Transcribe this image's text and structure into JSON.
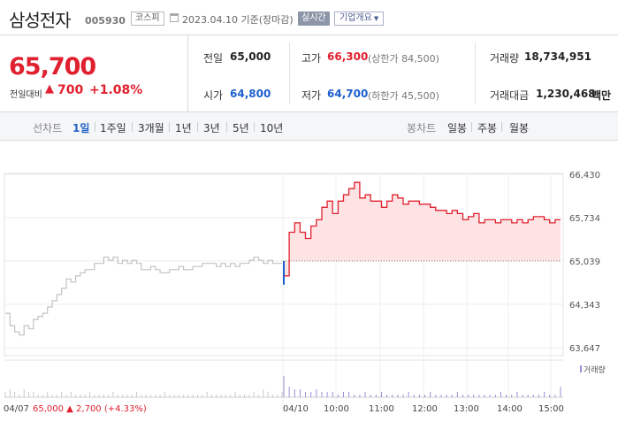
{
  "header": {
    "name": "삼성전자",
    "code": "005930",
    "market": "코스피",
    "as_of": "2023.04.10 기준(장마감)",
    "realtime_label": "실시간",
    "company_label": "기업개요"
  },
  "price": {
    "current": "65,700",
    "change_label": "전일대비",
    "change_arrow": "▲",
    "change": "700",
    "change_pct": "+1.08%"
  },
  "info": {
    "prev_close_label": "전일",
    "prev_close": "65,000",
    "high_label": "고가",
    "high": "66,300",
    "upper_limit": "(상한가 84,500)",
    "volume_label": "거래량",
    "volume": "18,734,951",
    "open_label": "시가",
    "open": "64,800",
    "low_label": "저가",
    "low": "64,700",
    "lower_limit": "(하한가 45,500)",
    "amount_label": "거래대금",
    "amount": "1,230,468",
    "amount_unit": "백만"
  },
  "toolbar": {
    "line_title": "선차트",
    "line_periods": [
      "1일",
      "1주일",
      "3개월",
      "1년",
      "3년",
      "5년",
      "10년"
    ],
    "active_period": "1일",
    "candle_title": "봉차트",
    "candle_periods": [
      "일봉",
      "주봉",
      "월봉"
    ]
  },
  "colors": {
    "up": "#e0202f",
    "down": "#1e5fd0",
    "prev_day_line": "#c2c2c2",
    "area_fill": "#fde3e3",
    "volume_today": "#9b8fd6"
  },
  "chart_data": {
    "type": "line",
    "y_ticks": [
      "66,430",
      "65,734",
      "65,039",
      "64,343",
      "63,647"
    ],
    "y_tick_values": [
      66430,
      65734,
      65039,
      64343,
      63647
    ],
    "ylim": [
      63647,
      66430
    ],
    "x_labels": [
      "04/07",
      "04/10",
      "10:00",
      "11:00",
      "12:00",
      "13:00",
      "14:00",
      "15:00"
    ],
    "baseline": 65039,
    "volume_label": "거래량",
    "prev_day_summary": {
      "date": "04/07",
      "close": "65,000",
      "arrow": "▲",
      "change": "2,700",
      "change_pct": "(+4.33%)"
    },
    "series": [
      {
        "values": [
          64200,
          64000,
          63900,
          63850,
          64000,
          63950,
          64100,
          64150,
          64200,
          64300,
          64400,
          64500,
          64600,
          64750,
          64700,
          64800,
          64850,
          64900,
          64900,
          65000,
          65000,
          65100,
          65050,
          65100,
          65000,
          65050,
          65000,
          65050,
          65000,
          64900,
          64900,
          64950,
          64900,
          64850,
          64850,
          64900,
          64900,
          64950,
          64900,
          64900,
          64950,
          64950,
          65000,
          65000,
          65000,
          64950,
          65000,
          64950,
          65000,
          64950,
          65000,
          65000,
          65050,
          65100,
          65050,
          65000,
          65050,
          65000,
          65000,
          65000
        ]
      },
      {
        "values": [
          64800,
          65500,
          65650,
          65500,
          65400,
          65600,
          65700,
          65900,
          66000,
          65800,
          66000,
          66100,
          66200,
          66300,
          66050,
          66100,
          66000,
          66000,
          65900,
          66000,
          66100,
          66050,
          65950,
          66000,
          66000,
          65950,
          65950,
          65900,
          65850,
          65850,
          65800,
          65850,
          65800,
          65700,
          65750,
          65800,
          65650,
          65700,
          65700,
          65650,
          65700,
          65700,
          65650,
          65700,
          65650,
          65700,
          65750,
          65750,
          65700,
          65650,
          65700,
          65700
        ]
      }
    ],
    "volume_prev": [
      2,
      3,
      2,
      1,
      3,
      2,
      2,
      1,
      1,
      2,
      1,
      1,
      2,
      1,
      2,
      1,
      1,
      1,
      2,
      1,
      1,
      1,
      1,
      2,
      1,
      1,
      1,
      1,
      2,
      1,
      1,
      1,
      1,
      1,
      2,
      1,
      1,
      1,
      1,
      1,
      1,
      1,
      1,
      2,
      1,
      1,
      1,
      1,
      1,
      2,
      1,
      1,
      1,
      2,
      1,
      3,
      2,
      1,
      1,
      2
    ],
    "volume_today": [
      8,
      4,
      3,
      3,
      2,
      2,
      3,
      2,
      2,
      2,
      1,
      2,
      2,
      1,
      1,
      2,
      1,
      1,
      2,
      1,
      1,
      1,
      1,
      2,
      1,
      1,
      1,
      2,
      1,
      1,
      1,
      1,
      2,
      1,
      1,
      1,
      1,
      1,
      1,
      1,
      2,
      1,
      1,
      2,
      1,
      1,
      1,
      1,
      2,
      1,
      1,
      4
    ]
  }
}
